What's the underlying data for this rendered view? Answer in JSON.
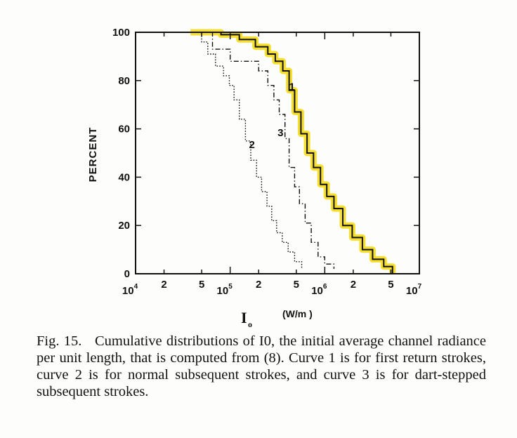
{
  "chart_data": {
    "type": "line",
    "ylabel": "PERCENT",
    "xlabel_symbol": "I",
    "xlabel_subscript": "o",
    "xlabel_unit": "(W/m )",
    "xscale": "log",
    "xlim": [
      10000,
      10000000
    ],
    "ylim": [
      0,
      100
    ],
    "y_ticks": [
      "0",
      "20",
      "40",
      "60",
      "80",
      "100"
    ],
    "x_tick_labels": [
      {
        "text": "10",
        "sup": "4"
      },
      {
        "text": "2"
      },
      {
        "text": "5"
      },
      {
        "text": "10",
        "sup": "5"
      },
      {
        "text": "2"
      },
      {
        "text": "5"
      },
      {
        "text": "10",
        "sup": "6"
      },
      {
        "text": "2"
      },
      {
        "text": "5"
      },
      {
        "text": "10",
        "sup": "7"
      }
    ],
    "series": [
      {
        "name": "1",
        "style": "solid",
        "highlight": "#f5d90a",
        "x": [
          38000,
          80000,
          125000,
          185000,
          250000,
          300000,
          360000,
          420000,
          480000,
          560000,
          650000,
          760000,
          900000,
          1050000,
          1250000,
          1550000,
          1950000,
          2500000,
          3200000,
          4200000,
          5200000
        ],
        "y": [
          100,
          99,
          97,
          94,
          91,
          88,
          84,
          76,
          67,
          58,
          50,
          44,
          37,
          32,
          27,
          20,
          15,
          10,
          6,
          3,
          0
        ]
      },
      {
        "name": "2",
        "style": "dotted",
        "x": [
          42000,
          50000,
          58000,
          70000,
          85000,
          98000,
          110000,
          125000,
          145000,
          165000,
          190000,
          215000,
          245000,
          275000,
          310000,
          355000,
          410000,
          480000,
          570000
        ],
        "y": [
          100,
          96,
          91,
          86,
          82,
          78,
          72,
          64,
          55,
          47,
          40,
          34,
          28,
          22,
          17,
          13,
          9,
          5,
          2
        ]
      },
      {
        "name": "3",
        "style": "dash-dot",
        "x": [
          50000,
          65000,
          100000,
          150000,
          200000,
          250000,
          290000,
          330000,
          380000,
          420000,
          480000,
          540000,
          620000,
          720000,
          850000,
          1000000,
          1250000
        ],
        "y": [
          100,
          93,
          88,
          88,
          84,
          78,
          72,
          66,
          56,
          44,
          36,
          29,
          21,
          13,
          7,
          4,
          2
        ]
      }
    ],
    "annotations": [
      {
        "text": "1",
        "x": 450000,
        "y": 76
      },
      {
        "text": "2",
        "x": 170000,
        "y": 52
      },
      {
        "text": "3",
        "x": 340000,
        "y": 57
      }
    ]
  },
  "caption": {
    "fig": "Fig. 15.",
    "text": "Cumulative distributions of I0, the initial average channel radiance per unit length, that is computed from (8). Curve 1 is for first return strokes, curve 2 is for normal subsequent strokes, and curve 3 is for dart-stepped subsequent strokes."
  }
}
